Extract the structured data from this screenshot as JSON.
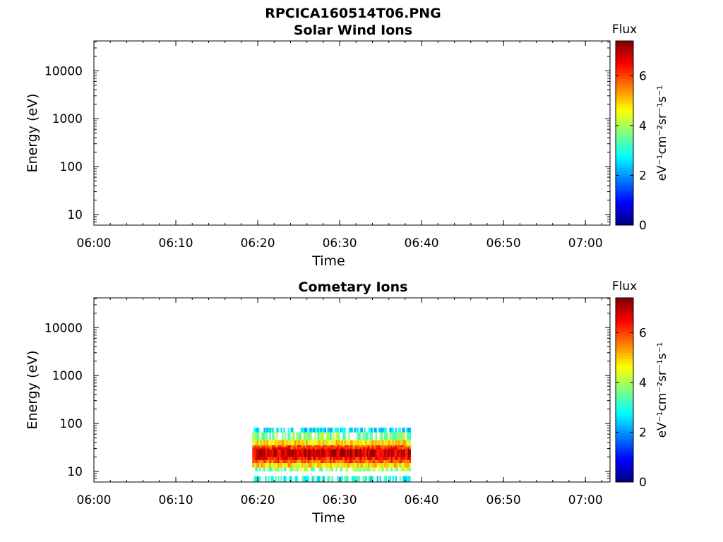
{
  "figure_title": "RPCICA160514T06.PNG",
  "colors": {
    "axis": "#000000",
    "background": "#ffffff"
  },
  "chart_data": [
    {
      "type": "heatmap",
      "title": "Solar Wind Ions",
      "xlabel": "Time",
      "ylabel": "Energy (eV)",
      "x_ticks": [
        "06:00",
        "06:10",
        "06:20",
        "06:30",
        "06:40",
        "06:50",
        "07:00"
      ],
      "y_ticks": [
        "10",
        "100",
        "1000",
        "10000"
      ],
      "y_scale": "log",
      "xlim": [
        "06:00",
        "07:03"
      ],
      "ylim": [
        6,
        42000
      ],
      "grid": false,
      "colorbar": {
        "label": "Flux",
        "units": "eV⁻¹cm⁻²sr⁻¹s⁻¹",
        "ticks": [
          "0",
          "2",
          "4",
          "6"
        ],
        "range": [
          0,
          7.4
        ],
        "colormap": "jet"
      },
      "data": []
    },
    {
      "type": "heatmap",
      "title": "Cometary Ions",
      "xlabel": "Time",
      "ylabel": "Energy (eV)",
      "x_ticks": [
        "06:00",
        "06:10",
        "06:20",
        "06:30",
        "06:40",
        "06:50",
        "07:00"
      ],
      "y_ticks": [
        "10",
        "100",
        "1000",
        "10000"
      ],
      "y_scale": "log",
      "xlim": [
        "06:00",
        "07:03"
      ],
      "ylim": [
        6,
        42000
      ],
      "grid": false,
      "colorbar": {
        "label": "Flux",
        "units": "eV⁻¹cm⁻²sr⁻¹s⁻¹",
        "ticks": [
          "0",
          "2",
          "4",
          "6"
        ],
        "range": [
          0,
          7.4
        ],
        "colormap": "jet"
      },
      "data": [
        {
          "t_start": "06:19:20",
          "t_end": "06:38:40",
          "e_low": 65,
          "e_high": 82,
          "flux": 2.6
        },
        {
          "t_start": "06:19:20",
          "t_end": "06:38:40",
          "e_low": 45,
          "e_high": 65,
          "flux": 3.6
        },
        {
          "t_start": "06:19:20",
          "t_end": "06:38:40",
          "e_low": 35,
          "e_high": 45,
          "flux": 4.8
        },
        {
          "t_start": "06:19:20",
          "t_end": "06:38:40",
          "e_low": 32,
          "e_high": 35,
          "flux": 5.8
        },
        {
          "t_start": "06:19:20",
          "t_end": "06:38:40",
          "e_low": 29,
          "e_high": 32,
          "flux": 6.3
        },
        {
          "t_start": "06:19:20",
          "t_end": "06:38:40",
          "e_low": 20,
          "e_high": 29,
          "flux": 6.9
        },
        {
          "t_start": "06:19:20",
          "t_end": "06:38:40",
          "e_low": 17,
          "e_high": 20,
          "flux": 6.3
        },
        {
          "t_start": "06:19:20",
          "t_end": "06:38:40",
          "e_low": 15,
          "e_high": 17,
          "flux": 5.8
        },
        {
          "t_start": "06:19:20",
          "t_end": "06:38:40",
          "e_low": 12,
          "e_high": 15,
          "flux": 4.8
        },
        {
          "t_start": "06:19:20",
          "t_end": "06:38:40",
          "e_low": 10,
          "e_high": 12,
          "flux": 3.8
        },
        {
          "t_start": "06:19:20",
          "t_end": "06:38:40",
          "e_low": 6,
          "e_high": 8,
          "flux": 3.0
        }
      ]
    }
  ]
}
